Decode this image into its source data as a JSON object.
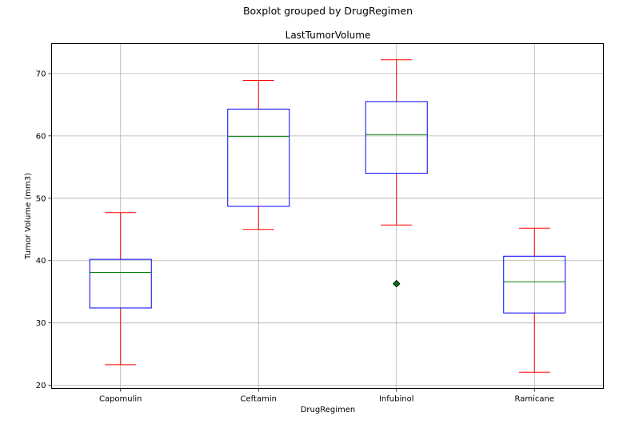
{
  "chart_data": {
    "type": "box",
    "suptitle": "Boxplot grouped by DrugRegimen",
    "title": "LastTumorVolume",
    "xlabel": "DrugRegimen",
    "ylabel": "Tumor Volume (mm3)",
    "ylim": [
      19.5,
      74.8
    ],
    "yticks": [
      "20",
      "30",
      "40",
      "50",
      "60",
      "70"
    ],
    "grid": true,
    "colors": {
      "box": "#0000ff",
      "whisker": "#ff0000",
      "cap": "#ff0000",
      "median": "#008000",
      "flier_fill": "#008000",
      "grid": "#b0b0b0"
    },
    "categories": [
      "Capomulin",
      "Ceftamin",
      "Infubinol",
      "Ramicane"
    ],
    "boxes": [
      {
        "name": "Capomulin",
        "whislo": 23.3,
        "q1": 32.4,
        "med": 38.1,
        "q3": 40.2,
        "whishi": 47.7,
        "fliers": []
      },
      {
        "name": "Ceftamin",
        "whislo": 45.0,
        "q1": 48.7,
        "med": 59.9,
        "q3": 64.3,
        "whishi": 68.9,
        "fliers": []
      },
      {
        "name": "Infubinol",
        "whislo": 45.7,
        "q1": 54.0,
        "med": 60.2,
        "q3": 65.5,
        "whishi": 72.2,
        "fliers": [
          36.3
        ]
      },
      {
        "name": "Ramicane",
        "whislo": 22.1,
        "q1": 31.6,
        "med": 36.6,
        "q3": 40.7,
        "whishi": 45.2,
        "fliers": []
      }
    ]
  }
}
